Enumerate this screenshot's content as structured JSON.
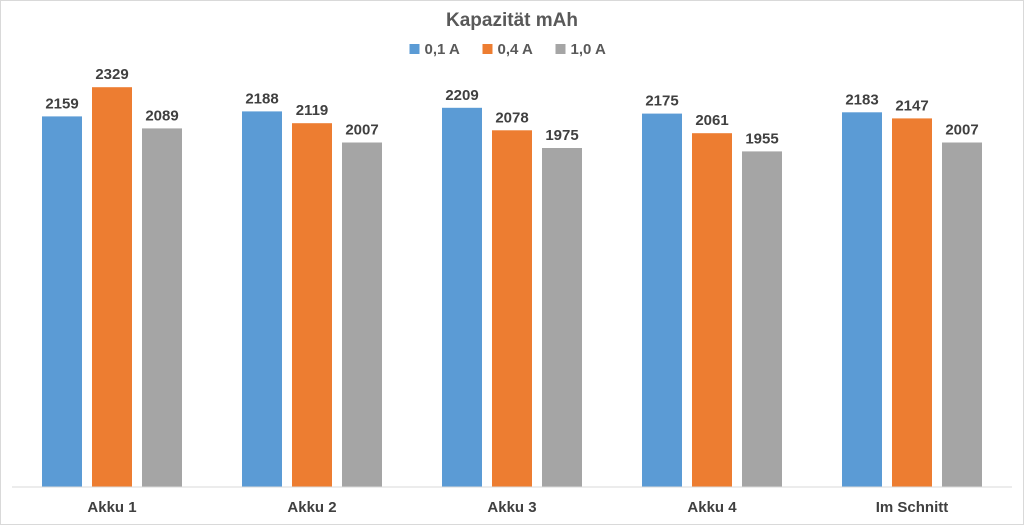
{
  "chart_data": {
    "type": "bar",
    "title": "Kapazität mAh",
    "categories": [
      "Akku 1",
      "Akku 2",
      "Akku 3",
      "Akku 4",
      "Im Schnitt"
    ],
    "series": [
      {
        "name": "0,1 A",
        "color": "#5b9bd5",
        "values": [
          2159,
          2188,
          2209,
          2175,
          2183
        ]
      },
      {
        "name": "0,4 A",
        "color": "#ed7d31",
        "values": [
          2329,
          2119,
          2078,
          2061,
          2147
        ]
      },
      {
        "name": "1,0 A",
        "color": "#a5a5a5",
        "values": [
          2089,
          2007,
          1975,
          1955,
          2007
        ]
      }
    ],
    "ylim": [
      0,
      2400
    ],
    "legend_position": "top-center",
    "grid": false,
    "data_labels": true
  }
}
